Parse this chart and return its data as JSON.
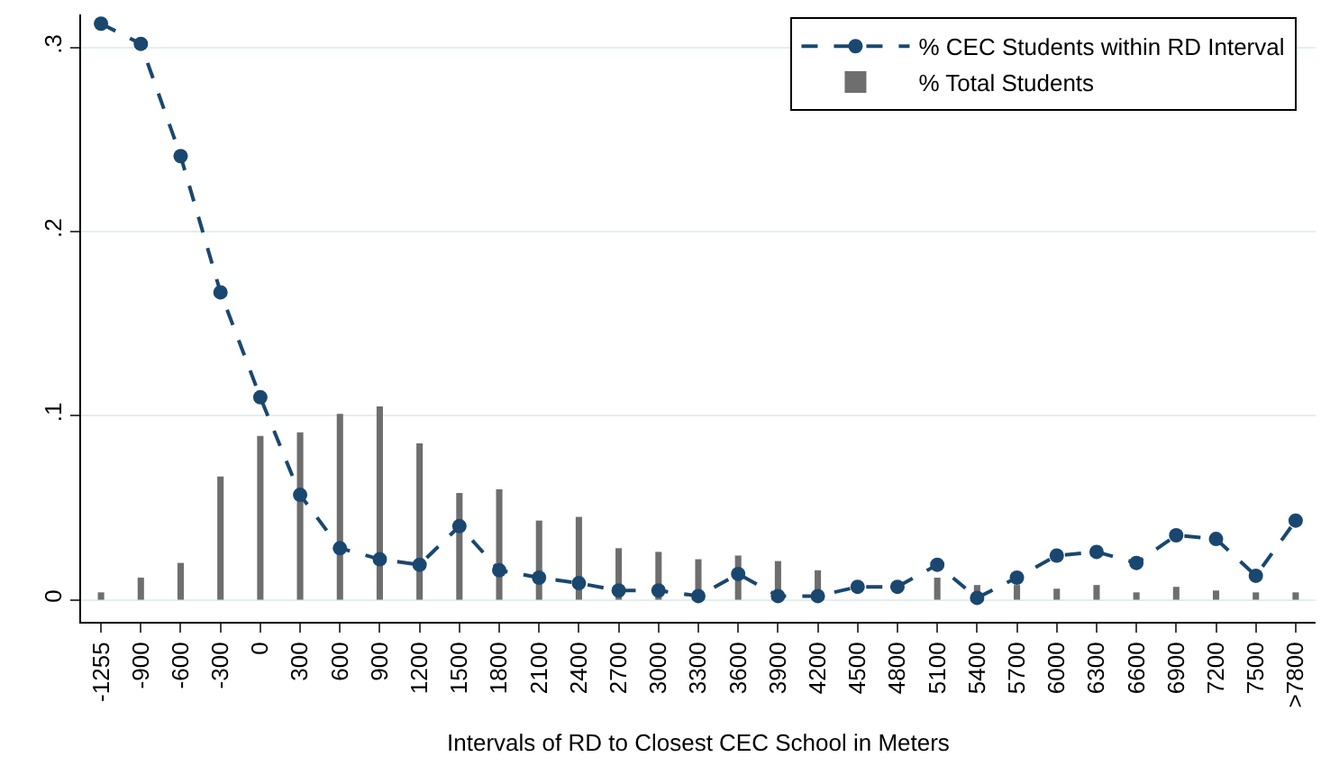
{
  "chart_data": {
    "type": "bar",
    "xlabel": "Intervals of RD to Closest CEC School in Meters",
    "categories": [
      "-1255",
      "-900",
      "-600",
      "-300",
      "0",
      "300",
      "600",
      "900",
      "1200",
      "1500",
      "1800",
      "2100",
      "2400",
      "2700",
      "3000",
      "3300",
      "3600",
      "3900",
      "4200",
      "4500",
      "4800",
      "5100",
      "5400",
      "5700",
      "6000",
      "6300",
      "6600",
      "6900",
      "7200",
      "7500",
      ">7800"
    ],
    "series": [
      {
        "name": "% CEC Students within RD Interval",
        "type": "line",
        "color": "#1a476f",
        "marker": "circle",
        "line_style": "dashed",
        "values": [
          0.313,
          0.302,
          0.241,
          0.167,
          0.11,
          0.057,
          0.028,
          0.022,
          0.019,
          0.04,
          0.016,
          0.012,
          0.009,
          0.005,
          0.005,
          0.002,
          0.014,
          0.002,
          0.002,
          0.007,
          0.007,
          0.019,
          0.001,
          0.012,
          0.024,
          0.026,
          0.02,
          0.035,
          0.033,
          0.013,
          0.043
        ]
      },
      {
        "name": "% Total Students",
        "type": "bar",
        "color": "#6e6e6e",
        "values": [
          0.004,
          0.012,
          0.02,
          0.067,
          0.089,
          0.091,
          0.101,
          0.105,
          0.085,
          0.058,
          0.06,
          0.043,
          0.045,
          0.028,
          0.026,
          0.022,
          0.024,
          0.021,
          0.016,
          null,
          null,
          0.012,
          0.008,
          0.008,
          0.006,
          0.008,
          0.004,
          0.007,
          0.005,
          0.004,
          0.004
        ]
      }
    ],
    "ylim": [
      -0.012,
      0.318
    ],
    "yticks": [
      {
        "value": 0,
        "label": "0"
      },
      {
        "value": 0.1,
        "label": ".1"
      },
      {
        "value": 0.2,
        "label": ".2"
      },
      {
        "value": 0.3,
        "label": ".3"
      }
    ],
    "grid": "y",
    "legend": "top right"
  }
}
